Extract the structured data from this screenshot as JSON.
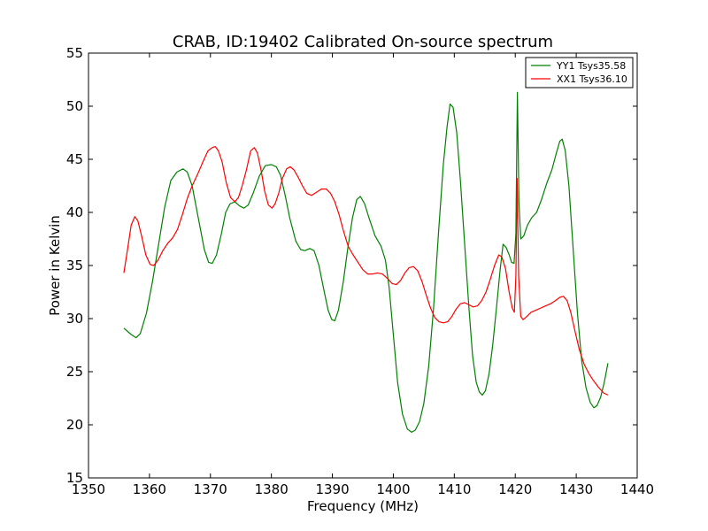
{
  "chart_data": {
    "type": "line",
    "title": "CRAB, ID:19402 Calibrated On-source spectrum",
    "xlabel": "Frequency (MHz)",
    "ylabel": "Power in Kelvin",
    "xlim": [
      1350,
      1440
    ],
    "ylim": [
      15,
      55
    ],
    "xticks": [
      1350,
      1360,
      1370,
      1380,
      1390,
      1400,
      1410,
      1420,
      1430,
      1440
    ],
    "yticks": [
      15,
      20,
      25,
      30,
      35,
      40,
      45,
      50,
      55
    ],
    "xtick_labels": [
      "1350",
      "1360",
      "1370",
      "1380",
      "1390",
      "1400",
      "1410",
      "1420",
      "1430",
      "1440"
    ],
    "ytick_labels": [
      "15",
      "20",
      "25",
      "30",
      "35",
      "40",
      "45",
      "50",
      "55"
    ],
    "grid": false,
    "legend": "top-right",
    "series": [
      {
        "name": "YY1 Tsys35.58",
        "color": "#008000",
        "points": [
          [
            1355.8,
            29.1
          ],
          [
            1357.0,
            28.5
          ],
          [
            1357.8,
            28.2
          ],
          [
            1358.5,
            28.6
          ],
          [
            1359.5,
            30.5
          ],
          [
            1360.5,
            33.5
          ],
          [
            1361.5,
            37.0
          ],
          [
            1362.5,
            40.5
          ],
          [
            1363.5,
            43.0
          ],
          [
            1364.5,
            43.8
          ],
          [
            1365.5,
            44.1
          ],
          [
            1366.2,
            43.8
          ],
          [
            1367.0,
            42.5
          ],
          [
            1368.0,
            39.5
          ],
          [
            1369.0,
            36.5
          ],
          [
            1369.7,
            35.3
          ],
          [
            1370.3,
            35.2
          ],
          [
            1371.0,
            36.0
          ],
          [
            1371.8,
            38.0
          ],
          [
            1372.5,
            40.0
          ],
          [
            1373.2,
            40.8
          ],
          [
            1374.0,
            41.0
          ],
          [
            1374.8,
            40.6
          ],
          [
            1375.5,
            40.4
          ],
          [
            1376.2,
            40.7
          ],
          [
            1377.0,
            41.8
          ],
          [
            1378.0,
            43.4
          ],
          [
            1379.0,
            44.4
          ],
          [
            1380.0,
            44.5
          ],
          [
            1380.8,
            44.3
          ],
          [
            1381.5,
            43.5
          ],
          [
            1382.3,
            41.5
          ],
          [
            1383.0,
            39.5
          ],
          [
            1384.0,
            37.3
          ],
          [
            1384.8,
            36.5
          ],
          [
            1385.5,
            36.4
          ],
          [
            1386.3,
            36.6
          ],
          [
            1387.0,
            36.4
          ],
          [
            1387.8,
            35.0
          ],
          [
            1388.5,
            33.0
          ],
          [
            1389.3,
            30.8
          ],
          [
            1389.9,
            29.9
          ],
          [
            1390.4,
            29.8
          ],
          [
            1391.0,
            30.8
          ],
          [
            1391.8,
            33.5
          ],
          [
            1392.5,
            36.5
          ],
          [
            1393.3,
            39.5
          ],
          [
            1394.0,
            41.2
          ],
          [
            1394.6,
            41.5
          ],
          [
            1395.3,
            40.8
          ],
          [
            1396.0,
            39.5
          ],
          [
            1397.0,
            37.8
          ],
          [
            1398.0,
            36.8
          ],
          [
            1398.7,
            35.5
          ],
          [
            1399.3,
            33.0
          ],
          [
            1400.0,
            28.5
          ],
          [
            1400.7,
            24.0
          ],
          [
            1401.5,
            21.0
          ],
          [
            1402.3,
            19.6
          ],
          [
            1403.0,
            19.3
          ],
          [
            1403.6,
            19.5
          ],
          [
            1404.3,
            20.3
          ],
          [
            1405.0,
            22.0
          ],
          [
            1405.8,
            25.5
          ],
          [
            1406.6,
            31.0
          ],
          [
            1407.4,
            38.0
          ],
          [
            1408.2,
            44.5
          ],
          [
            1408.8,
            48.0
          ],
          [
            1409.3,
            50.2
          ],
          [
            1409.8,
            49.9
          ],
          [
            1410.4,
            47.5
          ],
          [
            1411.0,
            43.0
          ],
          [
            1411.7,
            37.0
          ],
          [
            1412.4,
            31.0
          ],
          [
            1413.0,
            26.5
          ],
          [
            1413.6,
            24.0
          ],
          [
            1414.1,
            23.1
          ],
          [
            1414.6,
            22.8
          ],
          [
            1415.1,
            23.2
          ],
          [
            1415.7,
            24.8
          ],
          [
            1416.3,
            27.5
          ],
          [
            1417.0,
            31.5
          ],
          [
            1417.5,
            34.5
          ],
          [
            1418.0,
            37.0
          ],
          [
            1418.5,
            36.7
          ],
          [
            1419.0,
            36.0
          ],
          [
            1419.4,
            35.3
          ],
          [
            1419.8,
            35.2
          ],
          [
            1420.1,
            38.0
          ],
          [
            1420.35,
            51.3
          ],
          [
            1420.6,
            41.0
          ],
          [
            1420.9,
            37.5
          ],
          [
            1421.4,
            37.8
          ],
          [
            1422.0,
            38.8
          ],
          [
            1422.7,
            39.5
          ],
          [
            1423.5,
            40.0
          ],
          [
            1424.3,
            41.2
          ],
          [
            1425.2,
            42.8
          ],
          [
            1426.0,
            44.0
          ],
          [
            1426.7,
            45.5
          ],
          [
            1427.3,
            46.7
          ],
          [
            1427.7,
            46.9
          ],
          [
            1428.2,
            45.8
          ],
          [
            1428.8,
            42.5
          ],
          [
            1429.5,
            36.5
          ],
          [
            1430.2,
            30.5
          ],
          [
            1430.9,
            26.0
          ],
          [
            1431.6,
            23.5
          ],
          [
            1432.3,
            22.1
          ],
          [
            1432.9,
            21.6
          ],
          [
            1433.4,
            21.8
          ],
          [
            1434.0,
            22.6
          ],
          [
            1434.6,
            24.0
          ],
          [
            1435.2,
            25.8
          ]
        ]
      },
      {
        "name": "XX1 Tsys36.10",
        "color": "#ff0000",
        "points": [
          [
            1355.8,
            34.3
          ],
          [
            1356.4,
            36.5
          ],
          [
            1357.0,
            38.8
          ],
          [
            1357.6,
            39.6
          ],
          [
            1358.1,
            39.2
          ],
          [
            1358.7,
            37.8
          ],
          [
            1359.4,
            36.0
          ],
          [
            1360.1,
            35.1
          ],
          [
            1360.7,
            35.0
          ],
          [
            1361.4,
            35.5
          ],
          [
            1362.2,
            36.4
          ],
          [
            1363.0,
            37.1
          ],
          [
            1363.8,
            37.6
          ],
          [
            1364.6,
            38.4
          ],
          [
            1365.4,
            39.8
          ],
          [
            1366.2,
            41.3
          ],
          [
            1367.0,
            42.5
          ],
          [
            1367.9,
            43.6
          ],
          [
            1368.8,
            44.8
          ],
          [
            1369.6,
            45.8
          ],
          [
            1370.3,
            46.1
          ],
          [
            1370.8,
            46.2
          ],
          [
            1371.3,
            45.8
          ],
          [
            1371.9,
            44.8
          ],
          [
            1372.6,
            42.8
          ],
          [
            1373.3,
            41.4
          ],
          [
            1374.0,
            41.0
          ],
          [
            1374.6,
            41.4
          ],
          [
            1375.2,
            42.5
          ],
          [
            1375.9,
            44.0
          ],
          [
            1376.6,
            45.8
          ],
          [
            1377.2,
            46.1
          ],
          [
            1377.7,
            45.6
          ],
          [
            1378.3,
            44.0
          ],
          [
            1378.9,
            42.0
          ],
          [
            1379.5,
            40.7
          ],
          [
            1380.1,
            40.4
          ],
          [
            1380.6,
            40.8
          ],
          [
            1381.2,
            41.8
          ],
          [
            1381.8,
            43.2
          ],
          [
            1382.5,
            44.1
          ],
          [
            1383.1,
            44.3
          ],
          [
            1383.7,
            44.0
          ],
          [
            1384.4,
            43.3
          ],
          [
            1385.1,
            42.5
          ],
          [
            1385.8,
            41.8
          ],
          [
            1386.6,
            41.6
          ],
          [
            1387.4,
            41.9
          ],
          [
            1388.2,
            42.2
          ],
          [
            1389.0,
            42.2
          ],
          [
            1389.7,
            41.8
          ],
          [
            1390.4,
            41.0
          ],
          [
            1391.1,
            39.8
          ],
          [
            1391.8,
            38.3
          ],
          [
            1392.6,
            36.8
          ],
          [
            1393.4,
            36.0
          ],
          [
            1394.2,
            35.3
          ],
          [
            1395.0,
            34.6
          ],
          [
            1395.8,
            34.2
          ],
          [
            1396.6,
            34.2
          ],
          [
            1397.4,
            34.3
          ],
          [
            1398.2,
            34.2
          ],
          [
            1399.0,
            33.8
          ],
          [
            1399.8,
            33.3
          ],
          [
            1400.5,
            33.2
          ],
          [
            1401.2,
            33.6
          ],
          [
            1401.9,
            34.3
          ],
          [
            1402.6,
            34.8
          ],
          [
            1403.3,
            34.9
          ],
          [
            1404.0,
            34.5
          ],
          [
            1404.7,
            33.5
          ],
          [
            1405.4,
            32.2
          ],
          [
            1406.1,
            31.0
          ],
          [
            1406.8,
            30.1
          ],
          [
            1407.5,
            29.7
          ],
          [
            1408.2,
            29.6
          ],
          [
            1408.9,
            29.7
          ],
          [
            1409.6,
            30.2
          ],
          [
            1410.3,
            30.9
          ],
          [
            1411.0,
            31.4
          ],
          [
            1411.7,
            31.5
          ],
          [
            1412.4,
            31.3
          ],
          [
            1413.1,
            31.1
          ],
          [
            1413.8,
            31.2
          ],
          [
            1414.5,
            31.7
          ],
          [
            1415.2,
            32.5
          ],
          [
            1415.9,
            33.7
          ],
          [
            1416.6,
            35.0
          ],
          [
            1417.3,
            36.0
          ],
          [
            1417.8,
            35.8
          ],
          [
            1418.4,
            34.7
          ],
          [
            1419.0,
            32.5
          ],
          [
            1419.5,
            31.0
          ],
          [
            1419.85,
            30.6
          ],
          [
            1420.1,
            34.0
          ],
          [
            1420.3,
            43.2
          ],
          [
            1420.55,
            34.0
          ],
          [
            1420.9,
            30.2
          ],
          [
            1421.3,
            29.9
          ],
          [
            1421.9,
            30.2
          ],
          [
            1422.6,
            30.6
          ],
          [
            1423.4,
            30.8
          ],
          [
            1424.2,
            31.0
          ],
          [
            1425.0,
            31.2
          ],
          [
            1425.8,
            31.4
          ],
          [
            1426.6,
            31.7
          ],
          [
            1427.3,
            32.0
          ],
          [
            1427.9,
            32.1
          ],
          [
            1428.5,
            31.7
          ],
          [
            1429.1,
            30.6
          ],
          [
            1429.8,
            28.8
          ],
          [
            1430.5,
            27.1
          ],
          [
            1431.3,
            25.7
          ],
          [
            1432.1,
            24.8
          ],
          [
            1432.9,
            24.1
          ],
          [
            1433.7,
            23.5
          ],
          [
            1434.5,
            23.0
          ],
          [
            1435.2,
            22.8
          ]
        ]
      }
    ]
  }
}
